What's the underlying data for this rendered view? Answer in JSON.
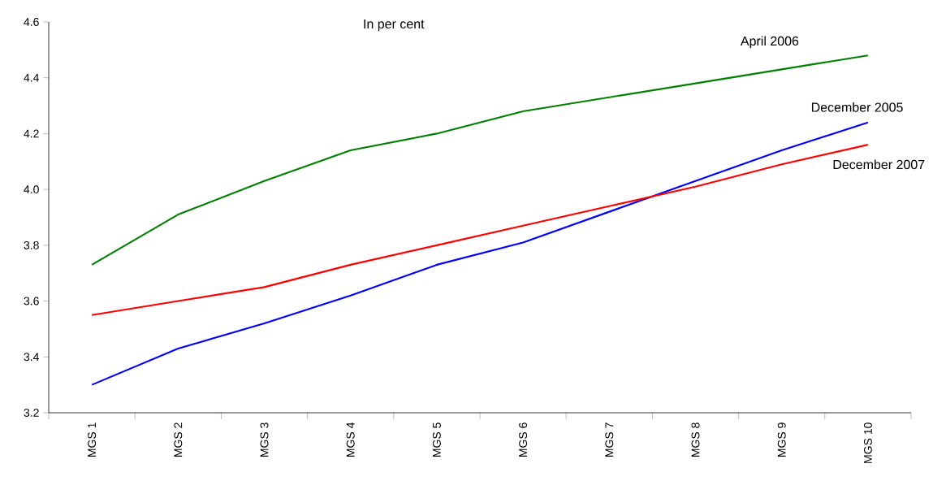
{
  "chart_data": {
    "type": "line",
    "title": "In per cent",
    "categories": [
      "MGS 1",
      "MGS 2",
      "MGS 3",
      "MGS 4",
      "MGS 5",
      "MGS 6",
      "MGS 7",
      "MGS 8",
      "MGS 9",
      "MGS 10"
    ],
    "series": [
      {
        "name": "April 2006",
        "color": "#008000",
        "values": [
          3.73,
          3.91,
          4.03,
          4.14,
          4.2,
          4.28,
          4.33,
          4.38,
          4.43,
          4.48
        ]
      },
      {
        "name": "December 2005",
        "color": "#0000ff",
        "values": [
          3.3,
          3.43,
          3.52,
          3.62,
          3.73,
          3.81,
          3.92,
          4.03,
          4.14,
          4.24
        ]
      },
      {
        "name": "December 2007",
        "color": "#ff0000",
        "values": [
          3.55,
          3.6,
          3.65,
          3.73,
          3.8,
          3.87,
          3.94,
          4.01,
          4.09,
          4.16
        ]
      }
    ],
    "ylim": [
      3.2,
      4.6
    ],
    "yticks": [
      3.2,
      3.4,
      3.6,
      3.8,
      {
        "value": 4.0,
        "label": "4.0"
      },
      4.2,
      4.4,
      4.6
    ],
    "grid": false,
    "marker": "none",
    "line_style": "solid"
  }
}
